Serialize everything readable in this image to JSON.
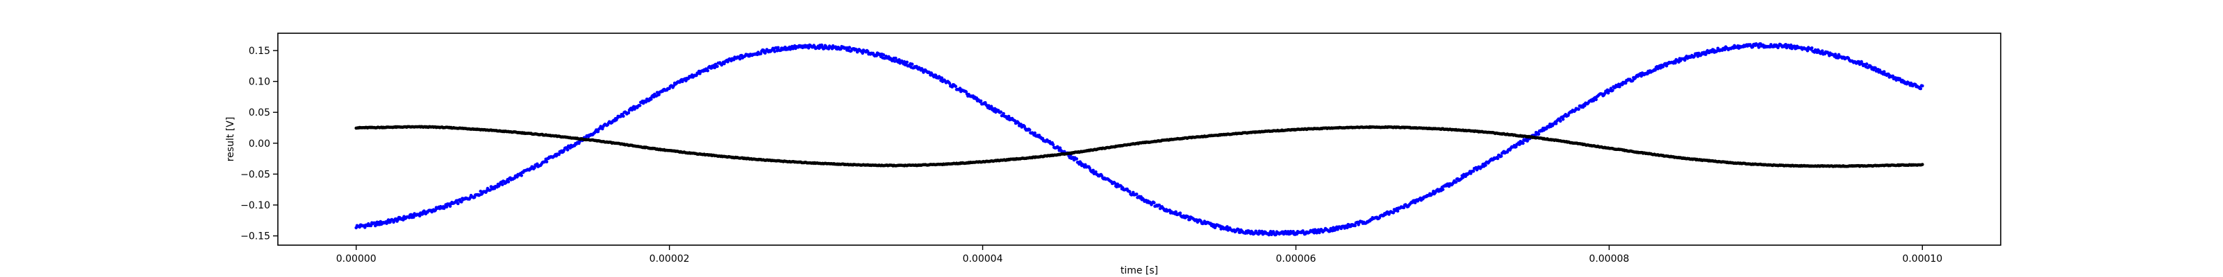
{
  "chart_data": {
    "type": "scatter",
    "xlabel": "time [s]",
    "ylabel": "result [V]",
    "xlim": [
      -5e-06,
      0.000105
    ],
    "ylim": [
      -0.165,
      0.178
    ],
    "x_ticks": [
      0.0,
      2e-05,
      4e-05,
      6e-05,
      8e-05,
      0.0001
    ],
    "x_tick_labels": [
      "0.00000",
      "0.00002",
      "0.00004",
      "0.00006",
      "0.00008",
      "0.00010"
    ],
    "y_ticks": [
      -0.15,
      -0.1,
      -0.05,
      0.0,
      0.05,
      0.1,
      0.15
    ],
    "y_tick_labels": [
      "−0.15",
      "−0.10",
      "−0.05",
      "0.00",
      "0.05",
      "0.10",
      "0.15"
    ],
    "grid": false,
    "legend": "none",
    "series": [
      {
        "color": "#0000ff",
        "x": [
          0.0,
          4e-06,
          8e-06,
          1.2e-05,
          1.6e-05,
          2e-05,
          2.4e-05,
          2.8e-05,
          3.2e-05,
          3.6e-05,
          4e-05,
          4.4e-05,
          4.8e-05,
          5.2e-05,
          5.6e-05,
          6e-05,
          6.4e-05,
          6.8e-05,
          7.2e-05,
          7.6e-05,
          8e-05,
          8.4e-05,
          8.8e-05,
          9.2e-05,
          9.6e-05,
          0.0001
        ],
        "y": [
          -0.135,
          -0.115,
          -0.08,
          -0.03,
          0.03,
          0.09,
          0.135,
          0.155,
          0.15,
          0.12,
          0.065,
          0.005,
          -0.06,
          -0.11,
          -0.14,
          -0.145,
          -0.13,
          -0.09,
          -0.035,
          0.025,
          0.085,
          0.13,
          0.155,
          0.155,
          0.13,
          0.09
        ]
      },
      {
        "color": "#000000",
        "x": [
          0.0,
          5e-06,
          1e-05,
          1.5e-05,
          2e-05,
          2.5e-05,
          3e-05,
          3.5e-05,
          4e-05,
          4.5e-05,
          5e-05,
          5.5e-05,
          6e-05,
          6.5e-05,
          7e-05,
          7.5e-05,
          8e-05,
          8.5e-05,
          9e-05,
          9.5e-05,
          0.0001
        ],
        "y": [
          0.025,
          0.026,
          0.018,
          0.005,
          -0.012,
          -0.025,
          -0.033,
          -0.036,
          -0.03,
          -0.018,
          0.0,
          0.013,
          0.022,
          0.026,
          0.022,
          0.01,
          -0.008,
          -0.025,
          -0.035,
          -0.037,
          -0.035
        ]
      }
    ]
  }
}
